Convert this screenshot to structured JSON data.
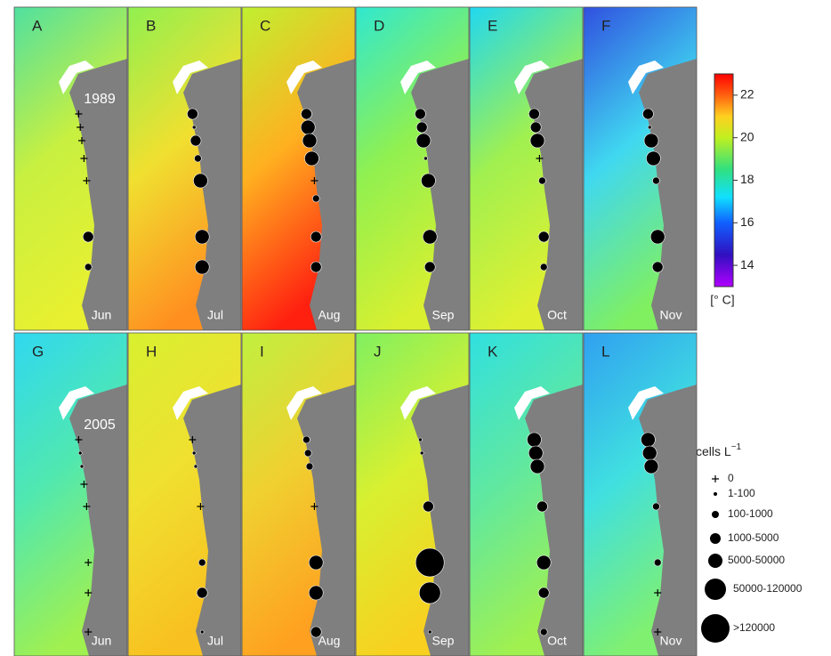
{
  "panels": [
    {
      "letter": "A",
      "month": "Jun",
      "year": "1989",
      "samples": [
        0,
        0,
        0,
        0,
        0,
        null,
        3,
        2,
        null
      ]
    },
    {
      "letter": "B",
      "month": "Jul",
      "samples": [
        3,
        1,
        3,
        2,
        4,
        null,
        4,
        4,
        null
      ]
    },
    {
      "letter": "C",
      "month": "Aug",
      "samples": [
        3,
        4,
        4,
        4,
        0,
        2,
        3,
        3,
        null
      ]
    },
    {
      "letter": "D",
      "month": "Sep",
      "samples": [
        3,
        3,
        4,
        1,
        4,
        null,
        4,
        3,
        null
      ]
    },
    {
      "letter": "E",
      "month": "Oct",
      "samples": [
        3,
        3,
        4,
        0,
        2,
        null,
        3,
        2,
        null
      ]
    },
    {
      "letter": "F",
      "month": "Nov",
      "samples": [
        3,
        1,
        4,
        4,
        2,
        null,
        4,
        3,
        null
      ]
    },
    {
      "letter": "G",
      "month": "Jun",
      "year": "2005",
      "samples": [
        0,
        1,
        1,
        0,
        0,
        null,
        0,
        0,
        0
      ]
    },
    {
      "letter": "H",
      "month": "Jul",
      "samples": [
        0,
        1,
        1,
        null,
        0,
        null,
        2,
        3,
        1
      ]
    },
    {
      "letter": "I",
      "month": "Aug",
      "samples": [
        2,
        2,
        2,
        null,
        0,
        null,
        4,
        4,
        3
      ]
    },
    {
      "letter": "J",
      "month": "Sep",
      "samples": [
        1,
        1,
        null,
        null,
        3,
        null,
        6,
        5,
        1
      ]
    },
    {
      "letter": "K",
      "month": "Oct",
      "samples": [
        4,
        4,
        4,
        null,
        3,
        null,
        4,
        3,
        2
      ]
    },
    {
      "letter": "L",
      "month": "Nov",
      "samples": [
        4,
        4,
        4,
        null,
        2,
        null,
        2,
        0,
        0
      ]
    }
  ],
  "colorbar": {
    "ylim": [
      13,
      23
    ],
    "yticks": [
      14,
      16,
      18,
      20,
      22
    ],
    "unit": "[° C]"
  },
  "legend": {
    "title": "cells L",
    "title_sup": "−1",
    "classes": [
      "0",
      "1-100",
      "100-1000",
      "1000-5000",
      "5000-50000",
      "50000-120000",
      ">120000"
    ]
  }
}
